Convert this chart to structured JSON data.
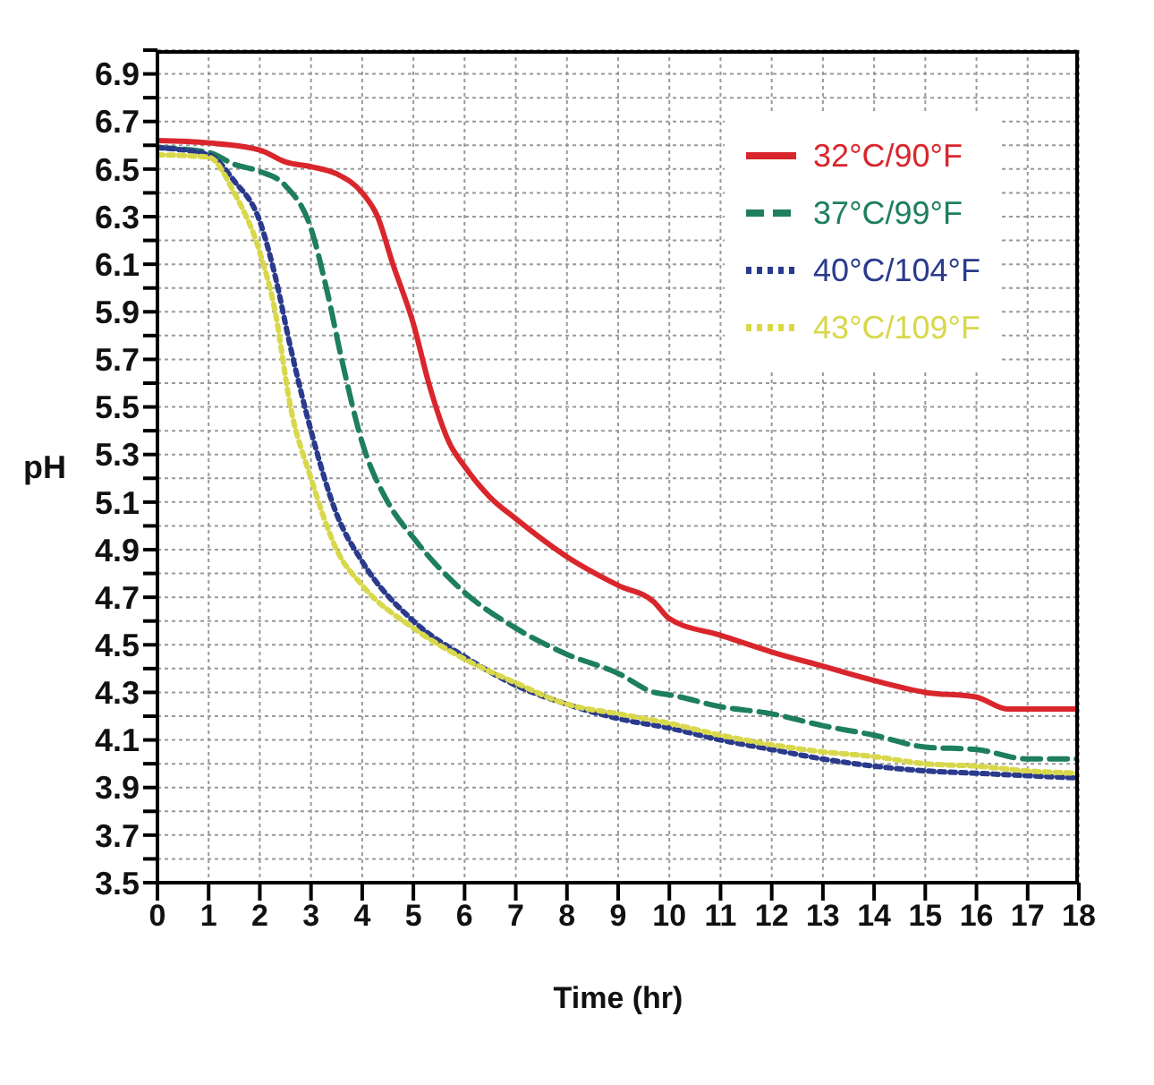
{
  "chart_data": {
    "type": "line",
    "xlabel": "Time (hr)",
    "ylabel": "pH",
    "xlim": [
      0,
      18
    ],
    "xticks": [
      0,
      1,
      2,
      3,
      4,
      5,
      6,
      7,
      8,
      9,
      10,
      11,
      12,
      13,
      14,
      15,
      16,
      17,
      18
    ],
    "ylim": [
      3.5,
      7.0
    ],
    "yticks": [
      3.5,
      {
        "value": 3.6,
        "label": null
      },
      3.7,
      {
        "value": 3.8,
        "label": null
      },
      3.9,
      {
        "value": 4.0,
        "label": null
      },
      4.1,
      {
        "value": 4.2,
        "label": null
      },
      4.3,
      {
        "value": 4.4,
        "label": null
      },
      4.5,
      {
        "value": 4.6,
        "label": null
      },
      4.7,
      {
        "value": 4.8,
        "label": null
      },
      4.9,
      {
        "value": 5.0,
        "label": null
      },
      5.1,
      {
        "value": 5.2,
        "label": null
      },
      5.3,
      {
        "value": 5.4,
        "label": null
      },
      5.5,
      {
        "value": 5.6,
        "label": null
      },
      5.7,
      {
        "value": 5.8,
        "label": null
      },
      5.9,
      {
        "value": 6.0,
        "label": null
      },
      6.1,
      {
        "value": 6.2,
        "label": null
      },
      6.3,
      {
        "value": 6.4,
        "label": null
      },
      6.5,
      {
        "value": 6.6,
        "label": null
      },
      6.7,
      {
        "value": 6.8,
        "label": null
      },
      6.9,
      {
        "value": 7.0,
        "label": null
      }
    ],
    "grid": true,
    "legend": "top right",
    "marker": "none",
    "series": [
      {
        "name": "32°C/90°F",
        "color": "#d9262c",
        "line_style": "solid",
        "x": [
          0,
          1,
          2,
          2.5,
          3,
          3.5,
          4,
          4.3,
          4.6,
          5,
          5.3,
          5.7,
          6,
          6.5,
          7,
          8,
          9,
          9.7,
          10,
          11,
          12,
          13,
          14,
          15,
          16,
          16.6,
          18
        ],
        "values": [
          6.62,
          6.61,
          6.58,
          6.53,
          6.51,
          6.48,
          6.4,
          6.3,
          6.1,
          5.85,
          5.6,
          5.35,
          5.25,
          5.12,
          5.03,
          4.87,
          4.75,
          4.68,
          4.61,
          4.54,
          4.47,
          4.41,
          4.35,
          4.3,
          4.28,
          4.23,
          4.23
        ]
      },
      {
        "name": "37°C/99°F",
        "color": "#1e7f5c",
        "line_style": "dashed",
        "x": [
          0,
          1,
          1.5,
          2,
          2.5,
          3,
          3.3,
          3.6,
          4,
          4.5,
          5,
          6,
          7,
          8,
          9,
          9.7,
          10,
          11,
          12,
          13,
          14,
          15,
          16,
          17,
          18
        ],
        "values": [
          6.59,
          6.57,
          6.52,
          6.49,
          6.43,
          6.25,
          6.0,
          5.7,
          5.35,
          5.1,
          4.95,
          4.72,
          4.57,
          4.46,
          4.38,
          4.3,
          4.29,
          4.24,
          4.21,
          4.16,
          4.12,
          4.07,
          4.06,
          4.02,
          4.02
        ]
      },
      {
        "name": "40°C/104°F",
        "color": "#2a3a8c",
        "line_style": "dotted",
        "x": [
          0,
          1,
          1.5,
          2,
          2.3,
          2.6,
          3,
          3.5,
          4,
          5,
          6,
          7,
          8,
          9,
          10,
          11,
          12,
          13,
          14,
          15,
          16,
          17,
          18
        ],
        "values": [
          6.59,
          6.56,
          6.45,
          6.28,
          6.05,
          5.75,
          5.4,
          5.05,
          4.85,
          4.6,
          4.45,
          4.33,
          4.25,
          4.19,
          4.15,
          4.1,
          4.06,
          4.02,
          3.99,
          3.97,
          3.96,
          3.95,
          3.94
        ]
      },
      {
        "name": "43°C/109°F",
        "color": "#d8d84a",
        "line_style": "dotted",
        "x": [
          0,
          1,
          1.5,
          2,
          2.3,
          2.6,
          3,
          3.5,
          4,
          5,
          6,
          7,
          8,
          9,
          10,
          11,
          12,
          13,
          14,
          15,
          16,
          17,
          18
        ],
        "values": [
          6.56,
          6.55,
          6.4,
          6.15,
          5.9,
          5.5,
          5.2,
          4.9,
          4.75,
          4.57,
          4.44,
          4.34,
          4.25,
          4.21,
          4.17,
          4.12,
          4.08,
          4.05,
          4.03,
          4.0,
          3.99,
          3.97,
          3.96
        ]
      }
    ]
  }
}
